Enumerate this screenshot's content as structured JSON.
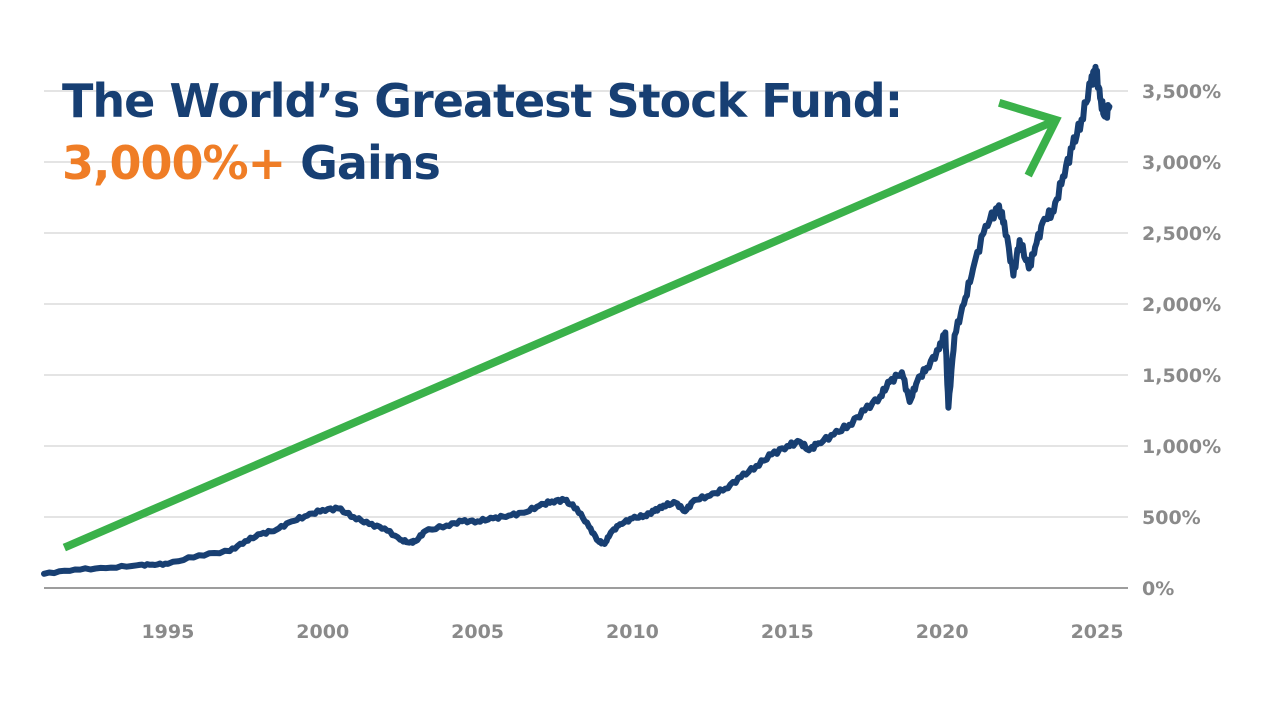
{
  "title": {
    "line1": "The World’s Greatest Stock Fund:",
    "line2_highlight": "3,000%+",
    "line2_rest": " Gains"
  },
  "colors": {
    "title": "#173f73",
    "highlight": "#ef7d26",
    "line": "#183f72",
    "arrow": "#3ab14a",
    "grid": "#d3d3d3",
    "axis": "#7d7d7d",
    "tick_text": "#8a8a8a"
  },
  "chart_data": {
    "type": "line",
    "title": "The World’s Greatest Stock Fund: 3,000%+ Gains",
    "xlabel": "",
    "ylabel": "",
    "xlim": [
      1991.0,
      2026.0
    ],
    "ylim": [
      0,
      3500
    ],
    "grid": true,
    "y_ticks": [
      0,
      500,
      1000,
      1500,
      2000,
      2500,
      3000,
      3500
    ],
    "y_tick_labels": [
      "0%",
      "500%",
      "1,000%",
      "1,500%",
      "2,000%",
      "2,500%",
      "3,000%",
      "3,500%"
    ],
    "x_ticks": [
      1995,
      2000,
      2005,
      2010,
      2015,
      2020,
      2025
    ],
    "x_tick_labels": [
      "1995",
      "2000",
      "2005",
      "2010",
      "2015",
      "2020",
      "2025"
    ],
    "series": [
      {
        "x": [
          1991.0,
          1992.0,
          1993.0,
          1994.0,
          1994.5,
          1995.0,
          1996.0,
          1997.0,
          1997.5,
          1998.0,
          1998.5,
          1999.0,
          1999.5,
          2000.0,
          2000.5,
          2001.0,
          2001.5,
          2002.0,
          2002.5,
          2002.8,
          2003.0,
          2003.3,
          2004.0,
          2004.5,
          2005.0,
          2005.5,
          2006.0,
          2006.5,
          2007.0,
          2007.4,
          2007.8,
          2008.2,
          2008.6,
          2008.9,
          2009.1,
          2009.3,
          2009.6,
          2010.0,
          2010.4,
          2010.7,
          2011.0,
          2011.4,
          2011.7,
          2012.0,
          2012.5,
          2013.0,
          2013.5,
          2014.0,
          2014.5,
          2015.0,
          2015.4,
          2015.7,
          2016.0,
          2016.5,
          2017.0,
          2017.5,
          2018.0,
          2018.3,
          2018.7,
          2018.95,
          2019.2,
          2019.5,
          2019.9,
          2020.1,
          2020.2,
          2020.4,
          2020.7,
          2021.0,
          2021.4,
          2021.8,
          2022.0,
          2022.3,
          2022.5,
          2022.8,
          2023.0,
          2023.3,
          2023.6,
          2023.9,
          2024.2,
          2024.5,
          2024.8,
          2024.95,
          2025.1,
          2025.25,
          2025.4
        ],
        "y": [
          100,
          130,
          140,
          160,
          165,
          170,
          230,
          260,
          330,
          380,
          410,
          470,
          510,
          550,
          560,
          500,
          450,
          420,
          340,
          320,
          330,
          400,
          440,
          470,
          470,
          490,
          510,
          530,
          580,
          610,
          620,
          560,
          430,
          330,
          310,
          390,
          450,
          490,
          510,
          540,
          580,
          600,
          540,
          620,
          650,
          700,
          780,
          860,
          940,
          1000,
          1030,
          970,
          1020,
          1080,
          1150,
          1250,
          1350,
          1450,
          1520,
          1310,
          1460,
          1550,
          1680,
          1800,
          1270,
          1780,
          2000,
          2250,
          2550,
          2680,
          2580,
          2200,
          2450,
          2250,
          2400,
          2600,
          2650,
          2900,
          3100,
          3300,
          3550,
          3670,
          3450,
          3320,
          3390
        ]
      }
    ],
    "annotation": "arrow"
  }
}
